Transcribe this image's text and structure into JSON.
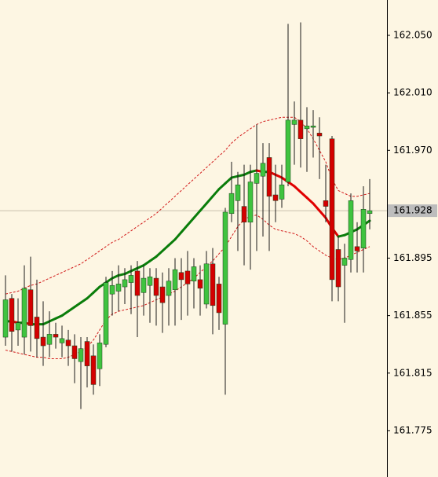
{
  "chart_data": {
    "type": "candlestick",
    "up_color": "#3fc33f",
    "down_color": "#d40000",
    "outline_color": "#1a3d1a",
    "open": [
      161.84,
      161.867,
      161.845,
      161.84,
      161.873,
      161.854,
      161.84,
      161.835,
      161.842,
      161.836,
      161.838,
      161.834,
      161.823,
      161.837,
      161.827,
      161.818,
      161.835,
      161.87,
      161.872,
      161.875,
      161.878,
      161.886,
      161.871,
      161.876,
      161.881,
      161.875,
      161.869,
      161.873,
      161.885,
      161.886,
      161.879,
      161.88,
      161.863,
      161.891,
      161.877,
      161.849,
      161.926,
      161.935,
      161.931,
      161.92,
      161.947,
      161.952,
      161.965,
      161.939,
      161.936,
      161.948,
      161.988,
      161.991,
      161.985,
      161.986,
      161.982,
      161.935,
      161.978,
      161.901,
      161.89,
      161.894,
      161.903,
      161.902,
      161.926
    ],
    "high": [
      161.883,
      161.87,
      161.867,
      161.89,
      161.896,
      161.88,
      161.865,
      161.858,
      161.85,
      161.848,
      161.845,
      161.842,
      161.84,
      161.84,
      161.835,
      161.842,
      161.882,
      161.886,
      161.89,
      161.888,
      161.89,
      161.893,
      161.89,
      161.888,
      161.888,
      161.885,
      161.888,
      161.895,
      161.895,
      161.9,
      161.895,
      161.89,
      161.9,
      161.902,
      161.882,
      161.93,
      161.962,
      161.955,
      161.96,
      161.96,
      161.988,
      161.975,
      161.975,
      161.96,
      161.96,
      162.058,
      162.004,
      162.059,
      162.0,
      161.998,
      161.993,
      161.96,
      161.98,
      161.91,
      161.905,
      161.94,
      161.92,
      161.945,
      161.95
    ],
    "low": [
      161.834,
      161.83,
      161.834,
      161.828,
      161.83,
      161.826,
      161.82,
      161.826,
      161.832,
      161.826,
      161.82,
      161.808,
      161.79,
      161.805,
      161.8,
      161.806,
      161.833,
      161.855,
      161.858,
      161.863,
      161.856,
      161.84,
      161.855,
      161.85,
      161.848,
      161.843,
      161.848,
      161.848,
      161.852,
      161.855,
      161.86,
      161.855,
      161.86,
      161.842,
      161.845,
      161.8,
      161.92,
      161.9,
      161.89,
      161.887,
      161.9,
      161.91,
      161.9,
      161.92,
      161.93,
      161.945,
      161.96,
      161.958,
      161.955,
      161.965,
      161.95,
      161.92,
      161.865,
      161.865,
      161.85,
      161.885,
      161.885,
      161.885,
      161.915
    ],
    "close": [
      161.866,
      161.844,
      161.85,
      161.874,
      161.848,
      161.839,
      161.834,
      161.842,
      161.84,
      161.839,
      161.834,
      161.825,
      161.832,
      161.82,
      161.807,
      161.836,
      161.878,
      161.876,
      161.877,
      161.88,
      161.883,
      161.869,
      161.881,
      161.882,
      161.869,
      161.864,
      161.879,
      161.887,
      161.88,
      161.877,
      161.889,
      161.874,
      161.891,
      161.862,
      161.857,
      161.927,
      161.94,
      161.946,
      161.92,
      161.948,
      161.954,
      161.961,
      161.938,
      161.935,
      161.946,
      161.991,
      161.991,
      161.978,
      161.987,
      161.987,
      161.98,
      161.931,
      161.88,
      161.875,
      161.895,
      161.935,
      161.9,
      161.929,
      161.928
    ],
    "ma": {
      "up_color": "#0a7d0a",
      "down_color": "#e00000",
      "values": [
        161.851,
        161.851,
        161.85,
        161.85,
        161.849,
        161.849,
        161.849,
        161.851,
        161.853,
        161.855,
        161.858,
        161.861,
        161.864,
        161.867,
        161.871,
        161.875,
        161.878,
        161.881,
        161.883,
        161.884,
        161.886,
        161.888,
        161.89,
        161.893,
        161.896,
        161.9,
        161.904,
        161.908,
        161.913,
        161.918,
        161.923,
        161.928,
        161.933,
        161.938,
        161.943,
        161.947,
        161.951,
        161.952,
        161.953,
        161.955,
        161.956,
        161.955,
        161.955,
        161.953,
        161.951,
        161.948,
        161.945,
        161.941,
        161.937,
        161.933,
        161.928,
        161.923,
        161.916,
        161.91,
        161.911,
        161.913,
        161.915,
        161.918,
        161.921
      ]
    },
    "bands": {
      "color": "#d21a1a",
      "upper": [
        161.87,
        161.871,
        161.872,
        161.874,
        161.876,
        161.877,
        161.879,
        161.881,
        161.883,
        161.885,
        161.887,
        161.889,
        161.891,
        161.894,
        161.897,
        161.9,
        161.903,
        161.906,
        161.908,
        161.911,
        161.914,
        161.917,
        161.92,
        161.923,
        161.926,
        161.93,
        161.934,
        161.938,
        161.942,
        161.946,
        161.95,
        161.954,
        161.958,
        161.962,
        161.966,
        161.97,
        161.975,
        161.979,
        161.982,
        161.985,
        161.988,
        161.99,
        161.991,
        161.992,
        161.993,
        161.993,
        161.993,
        161.99,
        161.985,
        161.978,
        161.97,
        161.962,
        161.95,
        161.942,
        161.94,
        161.938,
        161.938,
        161.939,
        161.94
      ],
      "lower": [
        161.831,
        161.83,
        161.829,
        161.828,
        161.827,
        161.826,
        161.826,
        161.825,
        161.825,
        161.825,
        161.826,
        161.828,
        161.83,
        161.833,
        161.838,
        161.845,
        161.852,
        161.856,
        161.858,
        161.859,
        161.86,
        161.861,
        161.862,
        161.864,
        161.866,
        161.868,
        161.87,
        161.872,
        161.875,
        161.878,
        161.881,
        161.885,
        161.889,
        161.893,
        161.898,
        161.903,
        161.91,
        161.917,
        161.922,
        161.924,
        161.925,
        161.922,
        161.918,
        161.915,
        161.914,
        161.913,
        161.912,
        161.91,
        161.907,
        161.903,
        161.9,
        161.897,
        161.895,
        161.894,
        161.895,
        161.897,
        161.899,
        161.901,
        161.903
      ]
    },
    "ylim": [
      161.7427,
      162.0746
    ],
    "yticks": [
      161.775,
      161.815,
      161.855,
      161.895,
      {
        "value": 161.97,
        "label": "161.970"
      },
      {
        "value": 162.01,
        "label": "162.010"
      },
      {
        "value": 162.05,
        "label": "162.050"
      }
    ],
    "current_price": 161.928
  }
}
